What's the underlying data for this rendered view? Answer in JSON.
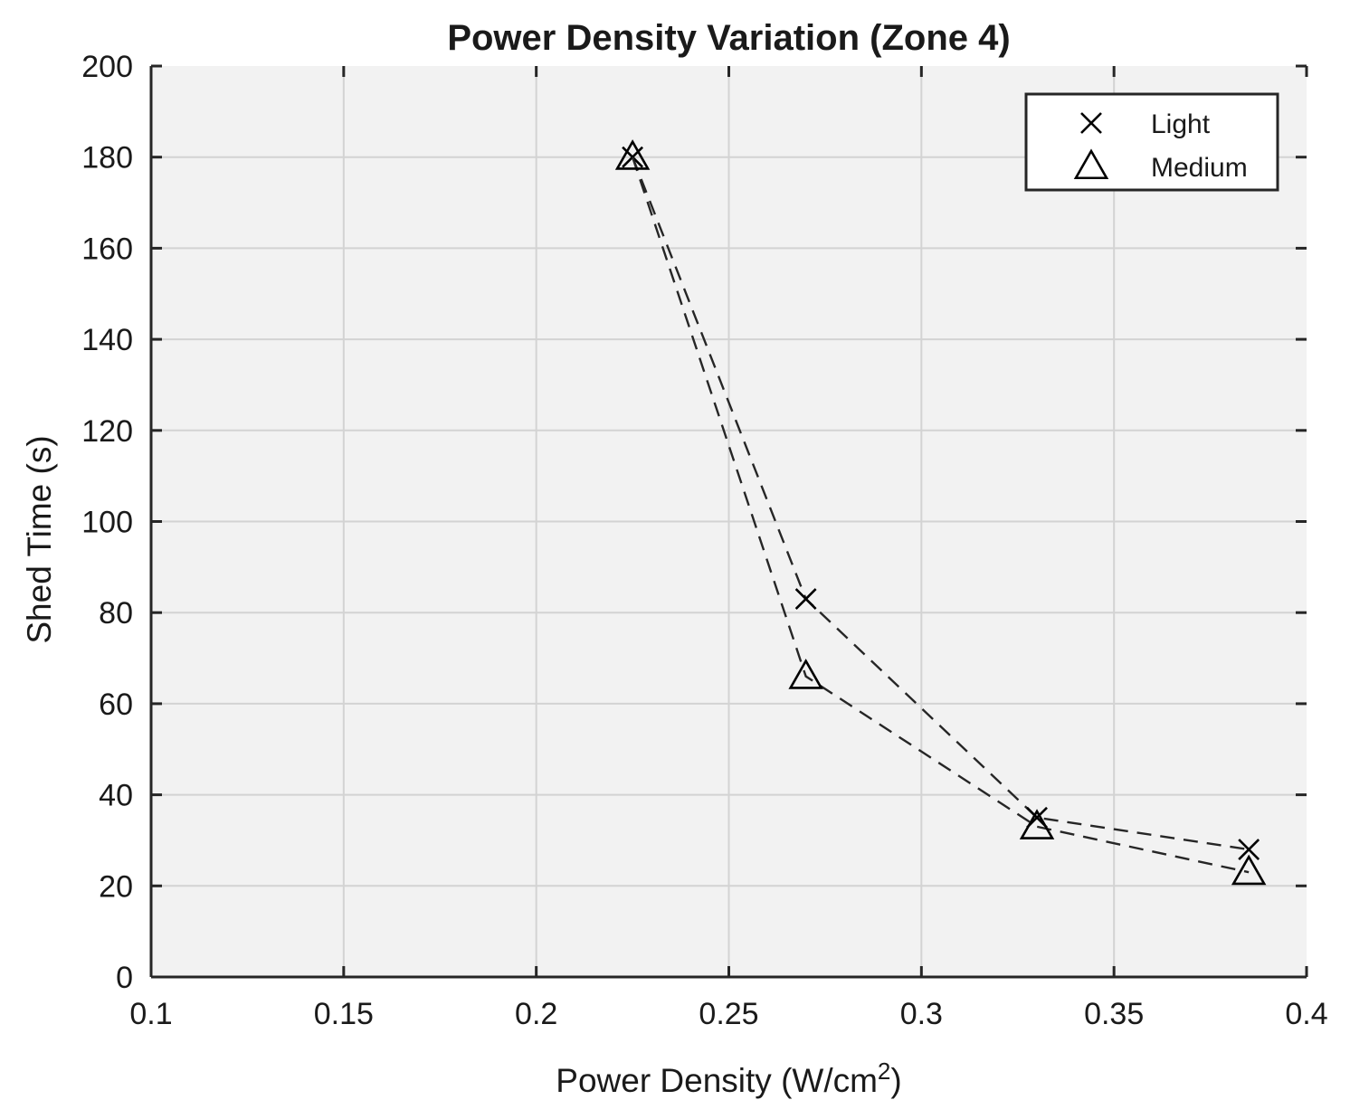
{
  "chart_data": {
    "type": "line",
    "title": "Power Density Variation (Zone 4)",
    "xlabel": "Power Density (W/cm",
    "xlabel_superscript": "2",
    "xlabel_suffix": ")",
    "ylabel": "Shed Time (s)",
    "xlim": [
      0.1,
      0.4
    ],
    "ylim": [
      0,
      200
    ],
    "xticks": [
      0.1,
      0.15,
      0.2,
      0.25,
      0.3,
      0.35,
      0.4
    ],
    "xtick_labels": [
      "0.1",
      "0.15",
      "0.2",
      "0.25",
      "0.3",
      "0.35",
      "0.4"
    ],
    "yticks": [
      0,
      20,
      40,
      60,
      80,
      100,
      120,
      140,
      160,
      180,
      200
    ],
    "ytick_labels": [
      "0",
      "20",
      "40",
      "60",
      "80",
      "100",
      "120",
      "140",
      "160",
      "180",
      "200"
    ],
    "grid": true,
    "legend_position": "top-right",
    "series": [
      {
        "name": "Light",
        "marker": "x",
        "line_style": "dashed",
        "x": [
          0.225,
          0.27,
          0.33,
          0.385
        ],
        "y": [
          180,
          83,
          35,
          28
        ]
      },
      {
        "name": "Medium",
        "marker": "triangle",
        "line_style": "dashed",
        "x": [
          0.225,
          0.27,
          0.33,
          0.385
        ],
        "y": [
          180,
          66,
          33,
          23
        ]
      }
    ],
    "colors": {
      "plot_background": "#f2f2f2",
      "grid": "#d3d3d3",
      "axis": "#262626",
      "series": "#000000"
    }
  }
}
